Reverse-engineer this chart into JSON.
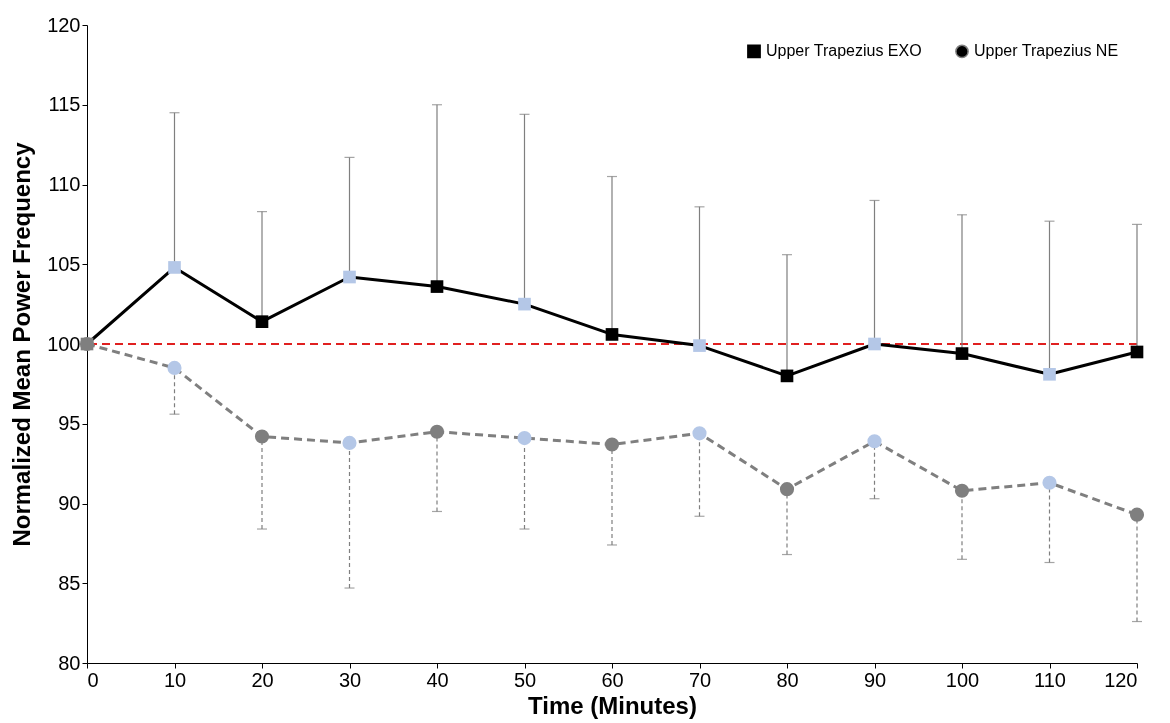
{
  "chart_data": {
    "type": "line",
    "xlabel": "Time (Minutes)",
    "ylabel": "Normalized Mean Power Frequency",
    "x": [
      0,
      10,
      20,
      30,
      40,
      50,
      60,
      70,
      80,
      90,
      100,
      110,
      120
    ],
    "xlim": [
      0,
      120
    ],
    "xticks": [
      0,
      10,
      20,
      30,
      40,
      50,
      60,
      70,
      80,
      90,
      100,
      110,
      120
    ],
    "ylim": [
      80,
      120
    ],
    "yticks": [
      80,
      85,
      90,
      95,
      100,
      105,
      110,
      115,
      120
    ],
    "grid": false,
    "legend": "top right",
    "series": [
      {
        "name": "Upper Trapezius EXO",
        "color": "#000000",
        "marker": "square",
        "line_style": "solid",
        "values": [
          100,
          104.8,
          101.4,
          104.2,
          103.6,
          102.5,
          100.6,
          99.9,
          98.0,
          100.0,
          99.4,
          98.1,
          99.5
        ],
        "colors": [
          "#7f7f7f",
          "#b4c7e7",
          "#000000",
          "#b4c7e7",
          "#000000",
          "#b4c7e7",
          "#000000",
          "#b4c7e7",
          "#000000",
          "#b4c7e7",
          "#000000",
          "#b4c7e7",
          "#000000"
        ],
        "errors": [
          null,
          [
            104.8,
            114.5
          ],
          [
            101.4,
            108.3
          ],
          [
            104.2,
            111.7
          ],
          [
            103.6,
            115.0
          ],
          [
            102.5,
            114.4
          ],
          [
            100.6,
            110.5
          ],
          [
            99.9,
            108.6
          ],
          [
            98.0,
            105.6
          ],
          [
            100.0,
            109.0
          ],
          [
            99.4,
            108.1
          ],
          [
            98.1,
            107.7
          ],
          [
            99.5,
            107.5
          ]
        ]
      },
      {
        "name": "Upper Trapezius NE",
        "color": "#7f7f7f",
        "marker": "circle",
        "line_style": "dashed",
        "values": [
          100,
          98.5,
          94.2,
          93.8,
          94.5,
          94.1,
          93.7,
          94.4,
          90.9,
          93.9,
          90.8,
          91.3,
          89.3
        ],
        "colors": [
          "#7f7f7f",
          "#b4c7e7",
          "#7f7f7f",
          "#b4c7e7",
          "#7f7f7f",
          "#b4c7e7",
          "#7f7f7f",
          "#b4c7e7",
          "#7f7f7f",
          "#b4c7e7",
          "#7f7f7f",
          "#b4c7e7",
          "#7f7f7f"
        ],
        "errors": [
          null,
          [
            95.6,
            98.5
          ],
          [
            88.4,
            94.2
          ],
          [
            84.7,
            93.8
          ],
          [
            89.5,
            94.5
          ],
          [
            88.4,
            94.1
          ],
          [
            87.4,
            93.7
          ],
          [
            89.2,
            94.4
          ],
          [
            86.8,
            90.9
          ],
          [
            90.3,
            93.9
          ],
          [
            86.5,
            90.8
          ],
          [
            86.3,
            91.3
          ],
          [
            82.6,
            89.3
          ]
        ]
      }
    ],
    "ref_lines": [
      {
        "axis": "y",
        "value": 100,
        "color": "#e02020",
        "line_style": "dashed"
      }
    ]
  }
}
